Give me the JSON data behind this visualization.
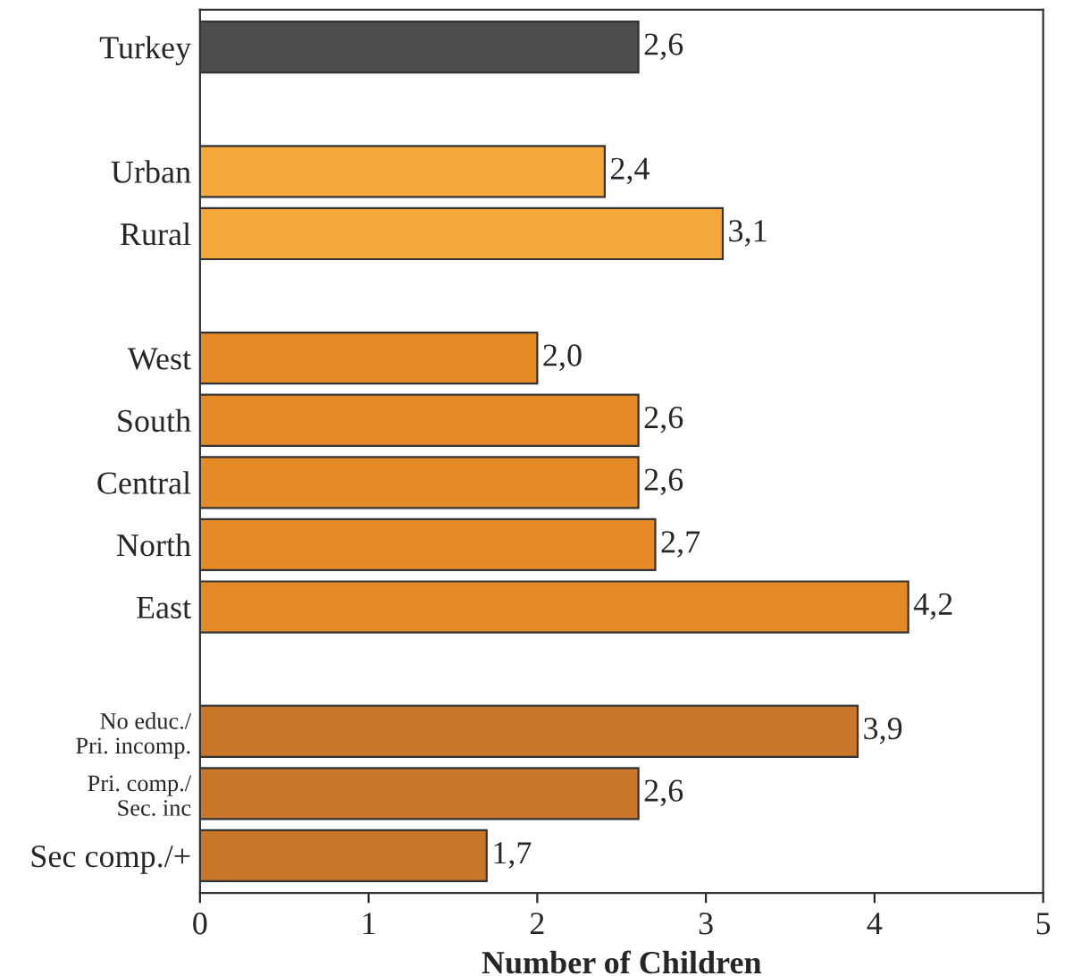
{
  "chart_data": {
    "type": "bar",
    "orientation": "horizontal",
    "xlabel": "Number of Children",
    "categories": [
      "Turkey",
      null,
      "Urban",
      "Rural",
      null,
      "West",
      "South",
      "Central",
      "North",
      "East",
      null,
      "No educ./\nPri. incomp.",
      "Pri. comp./\nSec. inc",
      "Sec comp./+"
    ],
    "values": [
      2.6,
      null,
      2.4,
      3.1,
      null,
      2.0,
      2.6,
      2.6,
      2.7,
      4.2,
      null,
      3.9,
      2.6,
      1.7
    ],
    "value_labels": [
      "2,6",
      null,
      "2,4",
      "3,1",
      null,
      "2,0",
      "2,6",
      "2,6",
      "2,7",
      "4,2",
      null,
      "3,9",
      "2,6",
      "1,7"
    ],
    "colors": [
      "#4d4d4f",
      "#ffffff",
      "#f7a83a",
      "#f7a83a",
      "#ffffff",
      "#e48a26",
      "#e48a26",
      "#e48a26",
      "#e48a26",
      "#e48a26",
      "#ffffff",
      "#c9772a",
      "#c9772a",
      "#c9772a"
    ],
    "xlim": [
      0,
      5
    ],
    "xticks": [
      0,
      1,
      2,
      3,
      4,
      5
    ],
    "grid": false,
    "legend": false
  }
}
